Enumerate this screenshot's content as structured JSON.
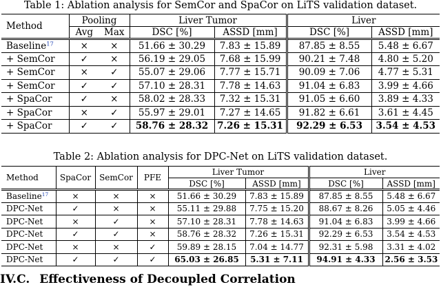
{
  "table1": {
    "caption": "Table 1: Ablation analysis for SemCor and SpaCor on LiTS validation dataset.",
    "headers": {
      "method": "Method",
      "pooling": "Pooling",
      "avg": "Avg",
      "max": "Max",
      "liver_tumor": "Liver Tumor",
      "liver": "Liver",
      "dsc": "DSC [%]",
      "assd": "ASSD [mm]"
    },
    "rows": [
      {
        "method": "Baseline",
        "ref": "17",
        "avg": "×",
        "max": "×",
        "lt_dsc": "51.66 ± 30.29",
        "lt_assd": "7.83 ± 15.89",
        "l_dsc": "87.85 ± 8.55",
        "l_assd": "5.48 ± 6.67"
      },
      {
        "method": "+ SemCor",
        "avg": "✓",
        "max": "×",
        "lt_dsc": "56.19 ± 29.05",
        "lt_assd": "7.68 ± 15.99",
        "l_dsc": "90.21 ± 7.48",
        "l_assd": "4.80 ± 5.20"
      },
      {
        "method": "+ SemCor",
        "avg": "×",
        "max": "✓",
        "lt_dsc": "55.07 ± 29.06",
        "lt_assd": "7.77 ± 15.71",
        "l_dsc": "90.09 ± 7.06",
        "l_assd": "4.77 ± 5.31"
      },
      {
        "method": "+ SemCor",
        "avg": "✓",
        "max": "✓",
        "lt_dsc": "57.10 ± 28.31",
        "lt_assd": "7.78 ± 14.63",
        "l_dsc": "91.04 ± 6.83",
        "l_assd": "3.99 ± 4.66"
      },
      {
        "method": "+ SpaCor",
        "avg": "✓",
        "max": "×",
        "lt_dsc": "58.02 ± 28.33",
        "lt_assd": "7.32 ± 15.31",
        "l_dsc": "91.05 ± 6.60",
        "l_assd": "3.89 ± 4.33"
      },
      {
        "method": "+ SpaCor",
        "avg": "×",
        "max": "✓",
        "lt_dsc": "55.97 ± 29.01",
        "lt_assd": "7.27 ± 14.65",
        "l_dsc": "91.82 ± 6.61",
        "l_assd": "3.61 ± 4.45"
      },
      {
        "method": "+ SpaCor",
        "avg": "✓",
        "max": "✓",
        "lt_dsc": "58.76 ± 28.32",
        "lt_assd": "7.26 ± 15.31",
        "l_dsc": "92.29 ± 6.53",
        "l_assd": "3.54 ± 4.53"
      }
    ]
  },
  "table2": {
    "caption": "Table 2: Ablation analysis for DPC-Net on LiTS validation dataset.",
    "headers": {
      "method": "Method",
      "spacor": "SpaCor",
      "semcor": "SemCor",
      "pfe": "PFE",
      "liver_tumor": "Liver Tumor",
      "liver": "Liver",
      "dsc": "DSC [%]",
      "assd": "ASSD [mm]"
    },
    "rows": [
      {
        "method": "Baseline",
        "ref": "17",
        "spacor": "×",
        "semcor": "×",
        "pfe": "×",
        "lt_dsc": "51.66 ± 30.29",
        "lt_assd": "7.83 ± 15.89",
        "l_dsc": "87.85 ± 8.55",
        "l_assd": "5.48 ± 6.67"
      },
      {
        "method": "DPC-Net",
        "spacor": "✓",
        "semcor": "×",
        "pfe": "×",
        "lt_dsc": "55.11 ± 29.88",
        "lt_assd": "7.75 ± 15.20",
        "l_dsc": "88.67 ± 8.26",
        "l_assd": "5.05 ± 4.46"
      },
      {
        "method": "DPC-Net",
        "spacor": "×",
        "semcor": "✓",
        "pfe": "×",
        "lt_dsc": "57.10 ± 28.31",
        "lt_assd": "7.78 ± 14.63",
        "l_dsc": "91.04 ± 6.83",
        "l_assd": "3.99 ± 4.66"
      },
      {
        "method": "DPC-Net",
        "spacor": "✓",
        "semcor": "✓",
        "pfe": "×",
        "lt_dsc": "58.76 ± 28.32",
        "lt_assd": "7.26 ± 15.31",
        "l_dsc": "92.29 ± 6.53",
        "l_assd": "3.54 ± 4.53"
      },
      {
        "method": "DPC-Net",
        "spacor": "×",
        "semcor": "×",
        "pfe": "✓",
        "lt_dsc": "59.89 ± 28.15",
        "lt_assd": "7.04 ± 14.77",
        "l_dsc": "92.31 ± 5.98",
        "l_assd": "3.31 ± 4.02"
      },
      {
        "method": "DPC-Net",
        "spacor": "✓",
        "semcor": "✓",
        "pfe": "✓",
        "lt_dsc": "65.03 ± 26.85",
        "lt_assd": "5.31 ± 7.11",
        "l_dsc": "94.91 ± 4.33",
        "l_assd": "2.56 ± 3.53"
      }
    ]
  },
  "section_heading": {
    "number": "IV.C.",
    "title": "Effectiveness of Decoupled Correlation"
  }
}
